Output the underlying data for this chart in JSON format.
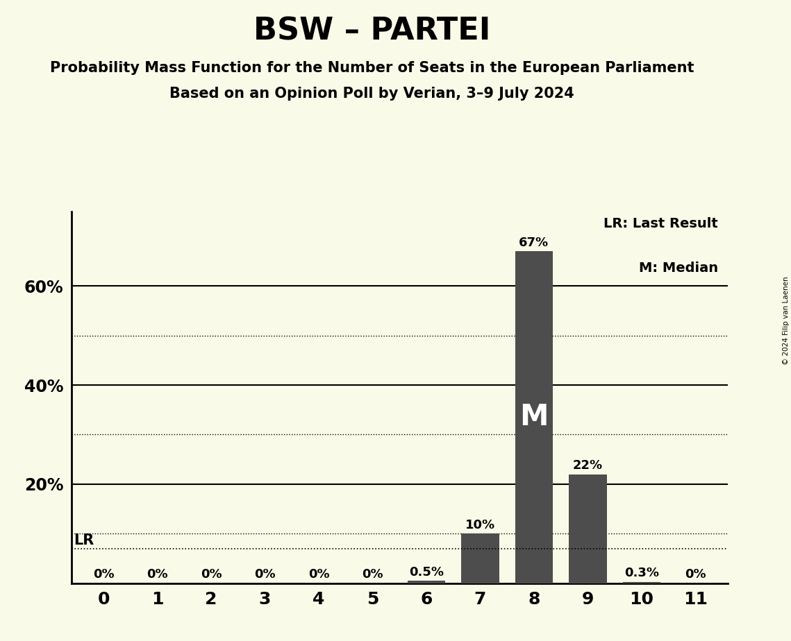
{
  "title": "BSW – PARTEI",
  "subtitle1": "Probability Mass Function for the Number of Seats in the European Parliament",
  "subtitle2": "Based on an Opinion Poll by Verian, 3–9 July 2024",
  "copyright": "© 2024 Filip van Laenen",
  "seats": [
    0,
    1,
    2,
    3,
    4,
    5,
    6,
    7,
    8,
    9,
    10,
    11
  ],
  "probabilities": [
    0.0,
    0.0,
    0.0,
    0.0,
    0.0,
    0.0,
    0.005,
    0.1,
    0.67,
    0.22,
    0.003,
    0.0
  ],
  "bar_color": "#4d4d4d",
  "background_color": "#FAFAE8",
  "bar_labels": [
    "0%",
    "0%",
    "0%",
    "0%",
    "0%",
    "0%",
    "0.5%",
    "10%",
    "67%",
    "22%",
    "0.3%",
    "0%"
  ],
  "median_seat": 8,
  "lr_value": 0.07,
  "lr_label": "LR",
  "legend_text1": "LR: Last Result",
  "legend_text2": "M: Median",
  "ytick_positions": [
    0.2,
    0.4,
    0.6
  ],
  "ytick_labels": [
    "20%",
    "40%",
    "60%"
  ],
  "solid_grid": [
    0.2,
    0.4,
    0.6
  ],
  "dotted_grid": [
    0.1,
    0.3,
    0.5
  ],
  "ylim": [
    0,
    0.75
  ],
  "xlim": [
    -0.6,
    11.6
  ]
}
